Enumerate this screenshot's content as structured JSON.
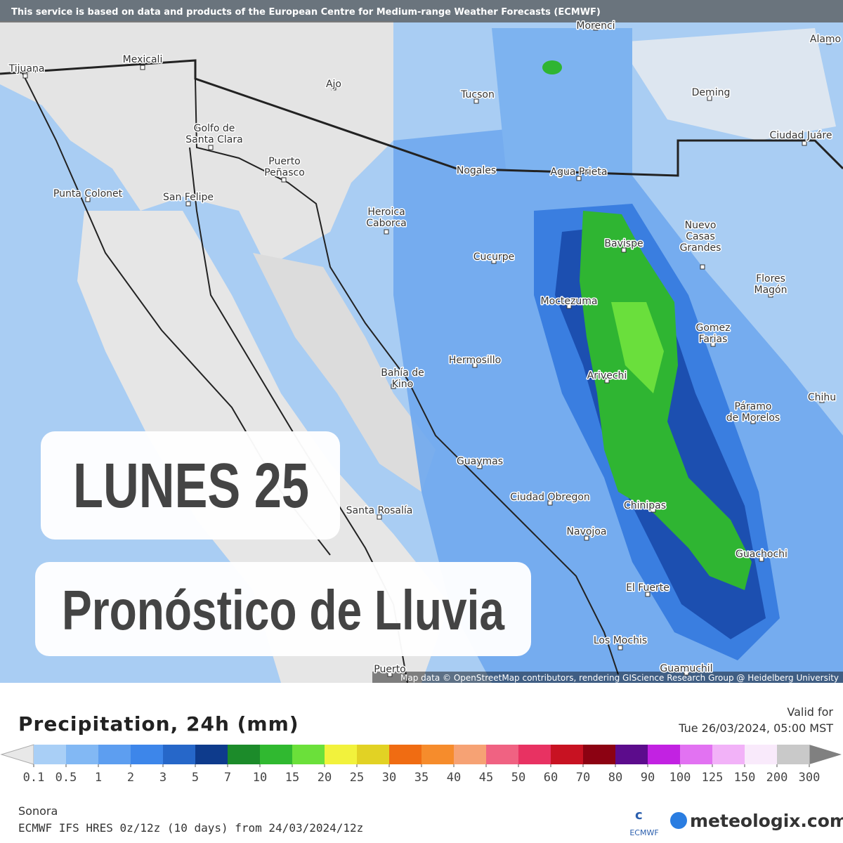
{
  "header": {
    "notice": "This service is based on data and products of the European Centre for Medium-range Weather Forecasts (ECMWF)"
  },
  "map": {
    "cities": [
      "Morenci",
      "Alamo",
      "Tijuana",
      "Mexicali",
      "Ajo",
      "Tucson",
      "Deming",
      [
        "Golfo de",
        "Santa Clara"
      ],
      "Ciudad Juáre",
      "Nogales",
      "Agua Prieta",
      [
        "Puerto",
        "Peñasco"
      ],
      "Punta Colonet",
      "San Felipe",
      [
        "Heroica",
        "Caborca"
      ],
      [
        "Nuevo",
        "Casas",
        "Grandes"
      ],
      "Bavispe",
      "Cucurpe",
      [
        "Flores",
        "Magón"
      ],
      "Moctezuma",
      [
        "Gomez",
        "Farias"
      ],
      "Hermosillo",
      [
        "Bahía de",
        "Kino"
      ],
      "Arivechi",
      "Chihu",
      [
        "Páramo",
        "de Morelos"
      ],
      "Guaymas",
      "Santa Rosalía",
      "Ciudad Obregon",
      "Chinipas",
      "Navojoa",
      "Guachochi",
      "El Fuerte",
      "Los Mochis",
      "Puerto",
      "Guamuchil"
    ],
    "attribution": "Map data © OpenStreetMap contributors, rendering GIScience Research Group @ Heidelberg University"
  },
  "overlay": {
    "day": "LUNES 25",
    "title": "Pronóstico de Lluvia"
  },
  "legend": {
    "title": "Precipitation, 24h (mm)",
    "valid_label": "Valid for",
    "valid_time": "Tue 26/03/2024, 05:00 MST",
    "colors": [
      "#a9cff6",
      "#82b8f4",
      "#5d9ef0",
      "#3d86ea",
      "#2667c9",
      "#0e3b8c",
      "#1c8b2a",
      "#30b930",
      "#6be03a",
      "#f2f23c",
      "#e2d224",
      "#f06c12",
      "#f68c2c",
      "#f6a274",
      "#f06282",
      "#e83262",
      "#c81222",
      "#8c0212",
      "#5c0c8c",
      "#c222e2",
      "#e272f2",
      "#f2b2f8",
      "#f9eafb",
      "#c9c9c9"
    ],
    "labels": [
      "0.1",
      "0.5",
      "1",
      "2",
      "3",
      "5",
      "7",
      "10",
      "15",
      "20",
      "25",
      "30",
      "35",
      "40",
      "45",
      "50",
      "60",
      "70",
      "80",
      "90",
      "100",
      "125",
      "150",
      "200",
      "300"
    ]
  },
  "footer": {
    "region": "Sonora",
    "model": "ECMWF IFS HRES 0z/12z (10 days) from  24/03/2024/12z",
    "ecmwf_logo": "ECMWF",
    "brand": "meteologix.com"
  }
}
